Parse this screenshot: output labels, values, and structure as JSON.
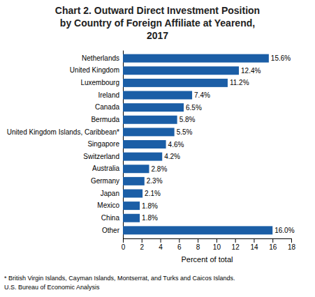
{
  "chart_data": {
    "type": "bar",
    "orientation": "horizontal",
    "title": [
      "Chart 2. Outward Direct Investment Position",
      "by Country of Foreign Affiliate at Yearend,",
      "2017"
    ],
    "xlabel": "Percent of total",
    "categories": [
      "Other",
      "China",
      "Mexico",
      "Japan",
      "Germany",
      "Australia",
      "Switzerland",
      "Singapore",
      "United Kingdom Islands, Caribbean*",
      "Bermuda",
      "Canada",
      "Ireland",
      "Luxembourg",
      "United Kingdom",
      "Netherlands"
    ],
    "values": [
      16.0,
      1.8,
      1.8,
      2.1,
      2.3,
      2.8,
      4.2,
      4.6,
      5.5,
      5.8,
      6.5,
      7.4,
      11.2,
      12.4,
      15.6
    ],
    "value_labels": [
      "16.0%",
      "1.8%",
      "1.8%",
      "2.1%",
      "2.3%",
      "2.8%",
      "4.2%",
      "4.6%",
      "5.5%",
      "5.8%",
      "6.5%",
      "7.4%",
      "11.2%",
      "12.4%",
      "15.6%"
    ],
    "data_labels": true,
    "color": "#1B5EA6",
    "xlim": [
      0,
      18
    ],
    "xticks": [
      0,
      2,
      4,
      6,
      8,
      10,
      12,
      14,
      16,
      18
    ],
    "grid": false,
    "annotations": [
      "* British Virgin Islands, Cayman Islands, Montserrat, and Turks and Caicos Islands.",
      "U.S. Bureau of Economic Analysis"
    ]
  }
}
